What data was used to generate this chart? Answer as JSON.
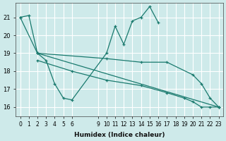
{
  "xlabel": "Humidex (Indice chaleur)",
  "bg_color": "#ceeaea",
  "grid_color": "#ffffff",
  "line_color": "#1a7a6e",
  "xlim": [
    -0.5,
    23.5
  ],
  "ylim": [
    15.5,
    21.8
  ],
  "xticks": [
    0,
    1,
    2,
    3,
    4,
    5,
    6,
    9,
    10,
    11,
    12,
    13,
    14,
    15,
    16,
    17,
    18,
    19,
    20,
    21,
    22,
    23
  ],
  "yticks": [
    16,
    17,
    18,
    19,
    20,
    21
  ],
  "series": [
    {
      "x": [
        0,
        1,
        2,
        3,
        4,
        5,
        6,
        10,
        11,
        12,
        13,
        14,
        15,
        16
      ],
      "y": [
        21.0,
        21.1,
        19.0,
        18.6,
        17.3,
        16.5,
        16.4,
        19.0,
        20.5,
        19.5,
        20.8,
        21.0,
        21.6,
        20.7
      ]
    },
    {
      "x": [
        0,
        2,
        23
      ],
      "y": [
        21.0,
        19.0,
        16.0
      ]
    },
    {
      "x": [
        2,
        10,
        14,
        17,
        20,
        21,
        22,
        23
      ],
      "y": [
        19.0,
        18.7,
        18.5,
        18.5,
        17.8,
        17.3,
        16.5,
        16.0
      ]
    },
    {
      "x": [
        2,
        6,
        10,
        14,
        17,
        19,
        20,
        21,
        22,
        23
      ],
      "y": [
        18.6,
        18.0,
        17.5,
        17.2,
        16.8,
        16.5,
        16.3,
        16.0,
        16.0,
        16.0
      ]
    }
  ]
}
